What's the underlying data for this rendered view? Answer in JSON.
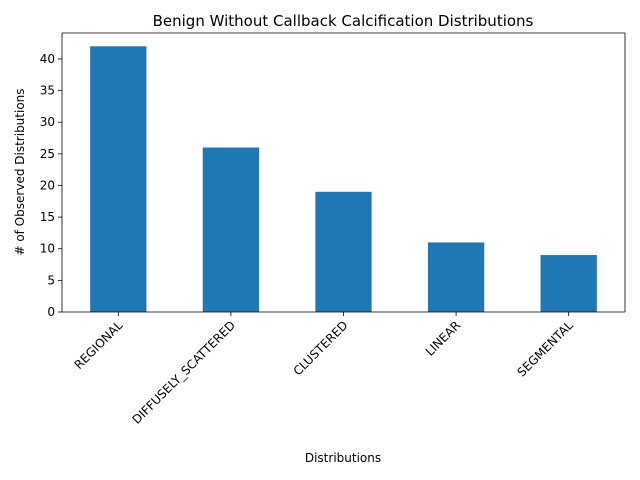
{
  "chart_data": {
    "type": "bar",
    "title": "Benign Without Callback Calcification Distributions",
    "xlabel": "Distributions",
    "ylabel": "# of Observed Distributions",
    "categories": [
      "REGIONAL",
      "DIFFUSELY_SCATTERED",
      "CLUSTERED",
      "LINEAR",
      "SEGMENTAL"
    ],
    "values": [
      42,
      26,
      19,
      11,
      9
    ],
    "ylim": [
      0,
      44.1
    ],
    "yticks": [
      0,
      5,
      10,
      15,
      20,
      25,
      30,
      35,
      40
    ],
    "xtick_rotation_deg": 45,
    "grid": false,
    "legend": "none",
    "bar_color": "#1f77b4"
  }
}
